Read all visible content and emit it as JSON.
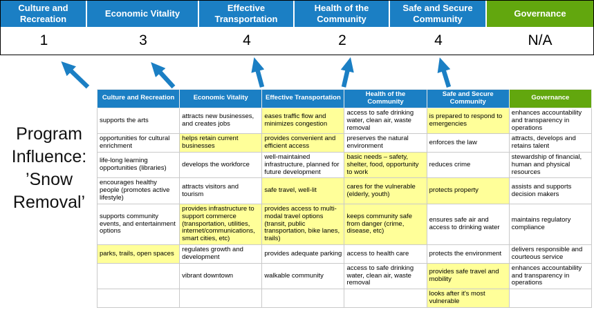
{
  "title": "Program Influence: ’Snow Removal’",
  "colors": {
    "blue": "#1B7FC4",
    "green": "#62A70E",
    "highlight": "#FFFF99"
  },
  "pillars": [
    {
      "label": "Culture and Recreation",
      "score": "1",
      "theme": "blue"
    },
    {
      "label": "Economic Vitality",
      "score": "3",
      "theme": "blue"
    },
    {
      "label": "Effective Transportation",
      "score": "4",
      "theme": "blue"
    },
    {
      "label": "Health of the Community",
      "score": "2",
      "theme": "blue"
    },
    {
      "label": "Safe and Secure Community",
      "score": "4",
      "theme": "blue"
    },
    {
      "label": "Governance",
      "score": "N/A",
      "theme": "green"
    }
  ],
  "table": {
    "headers": [
      {
        "label": "Culture and Recreation",
        "theme": "blue"
      },
      {
        "label": "Economic Vitality",
        "theme": "blue"
      },
      {
        "label": "Effective Transportation",
        "theme": "blue"
      },
      {
        "label": "Health of the Community",
        "theme": "blue"
      },
      {
        "label": "Safe and Secure Community",
        "theme": "blue"
      },
      {
        "label": "Governance",
        "theme": "green"
      }
    ],
    "rows": [
      [
        {
          "text": "supports the arts",
          "highlight": false
        },
        {
          "text": "attracts new businesses, and creates jobs",
          "highlight": false
        },
        {
          "text": "eases traffic flow and minimizes congestion",
          "highlight": true
        },
        {
          "text": "access to safe drinking water, clean air, waste removal",
          "highlight": false
        },
        {
          "text": "is prepared to respond to emergencies",
          "highlight": true
        },
        {
          "text": "enhances accountability and transparency in operations",
          "highlight": false
        }
      ],
      [
        {
          "text": "opportunities for cultural enrichment",
          "highlight": false
        },
        {
          "text": "helps retain current businesses",
          "highlight": true
        },
        {
          "text": "provides convenient and efficient access",
          "highlight": true
        },
        {
          "text": "preserves the natural environment",
          "highlight": false
        },
        {
          "text": "enforces the law",
          "highlight": false
        },
        {
          "text": "attracts, develops and retains talent",
          "highlight": false
        }
      ],
      [
        {
          "text": "life-long learning opportunities (libraries)",
          "highlight": false
        },
        {
          "text": "develops the workforce",
          "highlight": false
        },
        {
          "text": "well-maintained infrastructure, planned for future development",
          "highlight": false
        },
        {
          "text": "basic needs – safety, shelter, food, opportunity to work",
          "highlight": true
        },
        {
          "text": "reduces crime",
          "highlight": false
        },
        {
          "text": "stewardship of financial, human and physical resources",
          "highlight": false
        }
      ],
      [
        {
          "text": "encourages healthy people (promotes active lifestyle)",
          "highlight": false
        },
        {
          "text": "attracts visitors and tourism",
          "highlight": false
        },
        {
          "text": "safe travel, well-lit",
          "highlight": true
        },
        {
          "text": "cares for the vulnerable (elderly, youth)",
          "highlight": true
        },
        {
          "text": "protects property",
          "highlight": true
        },
        {
          "text": "assists and supports decision makers",
          "highlight": false
        }
      ],
      [
        {
          "text": "supports community events, and entertainment options",
          "highlight": false
        },
        {
          "text": "provides infrastructure to support commerce (transportation, utilities, internet/communications, smart cities, etc)",
          "highlight": true
        },
        {
          "text": "provides access to multi-modal travel options (transit, public transportation, bike lanes, trails)",
          "highlight": true
        },
        {
          "text": "keeps community safe from danger (crime, disease, etc)",
          "highlight": true
        },
        {
          "text": "ensures safe air and access to drinking water",
          "highlight": false
        },
        {
          "text": "maintains regulatory compliance",
          "highlight": false
        }
      ],
      [
        {
          "text": "parks, trails, open spaces",
          "highlight": true
        },
        {
          "text": "regulates growth and development",
          "highlight": false
        },
        {
          "text": "provides adequate parking",
          "highlight": false
        },
        {
          "text": "access to health care",
          "highlight": false
        },
        {
          "text": "protects the environment",
          "highlight": false
        },
        {
          "text": "delivers responsible and courteous service",
          "highlight": false
        }
      ],
      [
        {
          "text": "",
          "highlight": false
        },
        {
          "text": "vibrant downtown",
          "highlight": false
        },
        {
          "text": "walkable community",
          "highlight": false
        },
        {
          "text": "access to safe drinking water, clean air, waste removal",
          "highlight": false
        },
        {
          "text": "provides safe travel and mobility",
          "highlight": true
        },
        {
          "text": "enhances accountability and transparency in operations",
          "highlight": false
        }
      ],
      [
        {
          "text": "",
          "highlight": false
        },
        {
          "text": "",
          "highlight": false
        },
        {
          "text": "",
          "highlight": false
        },
        {
          "text": "",
          "highlight": false
        },
        {
          "text": "looks after it's most vulnerable",
          "highlight": true
        },
        {
          "text": "",
          "highlight": false
        }
      ]
    ]
  }
}
